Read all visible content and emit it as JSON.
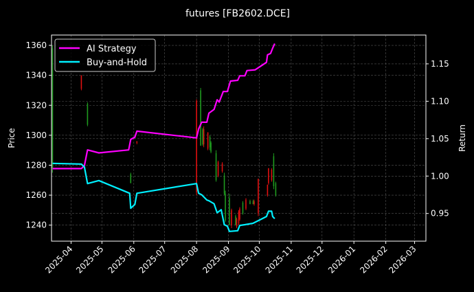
{
  "chart_data": {
    "type": "candlestick+line",
    "title": "futures [FB2602.DCE]",
    "ylabel": "Price",
    "y2label": "Return",
    "xlim": [
      "2025-03-13",
      "2026-03-12"
    ],
    "ylim": [
      1229.3,
      1366.9
    ],
    "y2lim": [
      0.913,
      1.1885
    ],
    "xticks": [
      "2025-04",
      "2025-05",
      "2025-06",
      "2025-07",
      "2025-08",
      "2025-09",
      "2025-10",
      "2025-11",
      "2025-12",
      "2026-01",
      "2026-02",
      "2026-03"
    ],
    "yticks": [
      1240,
      1260,
      1280,
      1300,
      1320,
      1340,
      1360
    ],
    "y2ticks": [
      0.95,
      1.0,
      1.05,
      1.1,
      1.15
    ],
    "y2tick_labels": [
      "0.95",
      "1.00",
      "1.05",
      "1.10",
      "1.15"
    ],
    "grid": true,
    "legend_position": "top-left",
    "colors": {
      "up": "#1f9a1f",
      "down": "#e01010",
      "ai": "#ff00ff",
      "bh": "#00f0ff",
      "background": "#000000",
      "grid": "#555555"
    },
    "candles_fields": [
      "date",
      "open",
      "high",
      "low",
      "close"
    ],
    "candles": [
      [
        "2025-03-14",
        1278,
        1360,
        1275,
        1358
      ],
      [
        "2025-04-11",
        1340,
        1340,
        1330,
        1331
      ],
      [
        "2025-04-17",
        1307,
        1322,
        1306,
        1321
      ],
      [
        "2025-05-29",
        1268,
        1275,
        1268,
        1274
      ],
      [
        "2025-06-04",
        1296,
        1296,
        1294,
        1295
      ],
      [
        "2025-08-01",
        1323,
        1324,
        1260,
        1262
      ],
      [
        "2025-08-05",
        1293,
        1331.6,
        1293,
        1330
      ],
      [
        "2025-08-07",
        1294,
        1305,
        1293,
        1304
      ],
      [
        "2025-08-08",
        1304,
        1306,
        1292,
        1294
      ],
      [
        "2025-08-12",
        1302,
        1302,
        1290,
        1291
      ],
      [
        "2025-08-14",
        1292,
        1300,
        1290,
        1299
      ],
      [
        "2025-08-15",
        1289,
        1296,
        1288,
        1295
      ],
      [
        "2025-08-20",
        1270,
        1290,
        1269,
        1288
      ],
      [
        "2025-08-22",
        1282,
        1283,
        1272,
        1273
      ],
      [
        "2025-08-26",
        1281,
        1282,
        1275,
        1276
      ],
      [
        "2025-08-28",
        1261,
        1275,
        1260,
        1273
      ],
      [
        "2025-08-29",
        1243,
        1263,
        1242,
        1261
      ],
      [
        "2025-09-02",
        1240,
        1261,
        1240,
        1258
      ],
      [
        "2025-09-04",
        1250,
        1251,
        1238,
        1240
      ],
      [
        "2025-09-08",
        1240,
        1247,
        1240,
        1246
      ],
      [
        "2025-09-09",
        1244,
        1245,
        1238,
        1239
      ],
      [
        "2025-09-11",
        1249,
        1250,
        1240,
        1241
      ],
      [
        "2025-09-12",
        1251,
        1252,
        1243,
        1244
      ],
      [
        "2025-09-15",
        1248,
        1256,
        1247,
        1255
      ],
      [
        "2025-09-18",
        1257,
        1258,
        1250,
        1251
      ],
      [
        "2025-09-22",
        1254,
        1257,
        1254,
        1256
      ],
      [
        "2025-09-25",
        1254,
        1257,
        1254,
        1256
      ],
      [
        "2025-09-26",
        1256,
        1257,
        1253,
        1254
      ],
      [
        "2025-09-30",
        1271,
        1271,
        1246,
        1248
      ],
      [
        "2025-10-09",
        1267,
        1267,
        1259,
        1260
      ],
      [
        "2025-10-10",
        1278,
        1278,
        1267,
        1268
      ],
      [
        "2025-10-13",
        1277,
        1278,
        1269,
        1270
      ],
      [
        "2025-10-15",
        1266,
        1288,
        1264,
        1286
      ],
      [
        "2025-10-17",
        1260,
        1269,
        1259,
        1268
      ]
    ],
    "series": [
      {
        "name": "AI Strategy",
        "axis": "right",
        "points": [
          [
            "2025-03-14",
            1.01
          ],
          [
            "2025-04-11",
            1.01
          ],
          [
            "2025-04-14",
            1.014
          ],
          [
            "2025-04-17",
            1.035
          ],
          [
            "2025-04-28",
            1.031
          ],
          [
            "2025-05-27",
            1.035
          ],
          [
            "2025-05-29",
            1.049
          ],
          [
            "2025-06-02",
            1.052
          ],
          [
            "2025-06-04",
            1.06
          ],
          [
            "2025-08-01",
            1.051
          ],
          [
            "2025-08-03",
            1.063
          ],
          [
            "2025-08-06",
            1.072
          ],
          [
            "2025-08-11",
            1.072
          ],
          [
            "2025-08-13",
            1.084
          ],
          [
            "2025-08-18",
            1.089
          ],
          [
            "2025-08-21",
            1.102
          ],
          [
            "2025-08-23",
            1.099
          ],
          [
            "2025-08-27",
            1.113
          ],
          [
            "2025-08-31",
            1.113
          ],
          [
            "2025-09-03",
            1.127
          ],
          [
            "2025-09-10",
            1.128
          ],
          [
            "2025-09-12",
            1.134
          ],
          [
            "2025-09-17",
            1.134
          ],
          [
            "2025-09-19",
            1.141
          ],
          [
            "2025-09-27",
            1.142
          ],
          [
            "2025-10-08",
            1.152
          ],
          [
            "2025-10-09",
            1.162
          ],
          [
            "2025-10-12",
            1.164
          ],
          [
            "2025-10-14",
            1.171
          ],
          [
            "2025-10-16",
            1.177
          ]
        ]
      },
      {
        "name": "Buy-and-Hold",
        "axis": "right",
        "points": [
          [
            "2025-03-14",
            1.017
          ],
          [
            "2025-04-11",
            1.016
          ],
          [
            "2025-04-14",
            1.012
          ],
          [
            "2025-04-17",
            0.99
          ],
          [
            "2025-04-28",
            0.994
          ],
          [
            "2025-05-28",
            0.977
          ],
          [
            "2025-05-29",
            0.957
          ],
          [
            "2025-06-02",
            0.962
          ],
          [
            "2025-06-04",
            0.977
          ],
          [
            "2025-08-01",
            0.99
          ],
          [
            "2025-08-03",
            0.977
          ],
          [
            "2025-08-06",
            0.975
          ],
          [
            "2025-08-11",
            0.968
          ],
          [
            "2025-08-13",
            0.967
          ],
          [
            "2025-08-18",
            0.963
          ],
          [
            "2025-08-21",
            0.951
          ],
          [
            "2025-08-25",
            0.955
          ],
          [
            "2025-08-28",
            0.935
          ],
          [
            "2025-08-31",
            0.933
          ],
          [
            "2025-09-02",
            0.926
          ],
          [
            "2025-09-10",
            0.927
          ],
          [
            "2025-09-12",
            0.934
          ],
          [
            "2025-09-17",
            0.935
          ],
          [
            "2025-09-25",
            0.937
          ],
          [
            "2025-10-08",
            0.946
          ],
          [
            "2025-10-10",
            0.953
          ],
          [
            "2025-10-13",
            0.953
          ],
          [
            "2025-10-14",
            0.946
          ],
          [
            "2025-10-16",
            0.943
          ]
        ]
      }
    ]
  }
}
